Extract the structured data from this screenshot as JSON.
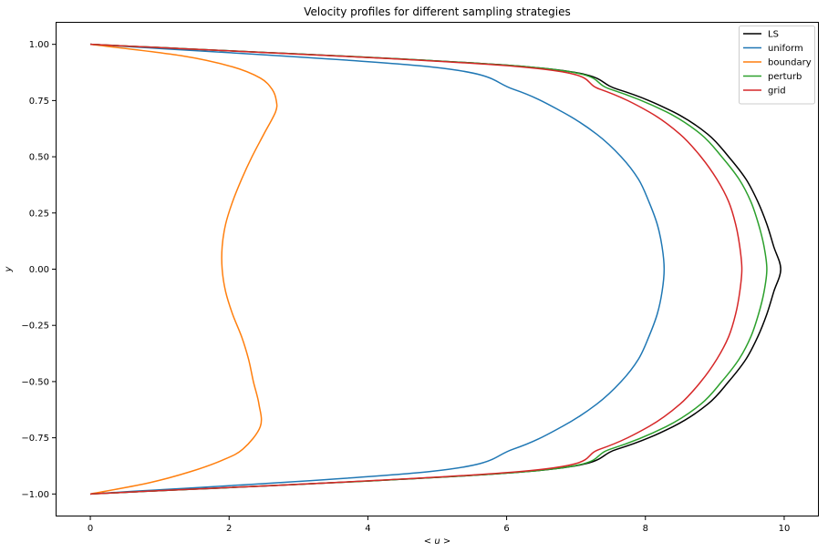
{
  "chart_data": {
    "type": "line",
    "title": "Velocity profiles for different sampling strategies",
    "xlabel": "< u >",
    "ylabel": "y",
    "xlim": [
      -0.5,
      10.5
    ],
    "ylim": [
      -1.1,
      1.1
    ],
    "xticks": [
      0,
      2,
      4,
      6,
      8,
      10
    ],
    "yticks": [
      -1.0,
      -0.75,
      -0.5,
      -0.25,
      0.0,
      0.25,
      0.5,
      0.75,
      1.0
    ],
    "xtick_labels": [
      "0",
      "2",
      "4",
      "6",
      "8",
      "10"
    ],
    "ytick_labels": [
      "−1.00",
      "−0.75",
      "−0.50",
      "−0.25",
      "0.00",
      "0.25",
      "0.50",
      "0.75",
      "1.00"
    ],
    "grid": false,
    "legend_position": "top-right",
    "series": [
      {
        "name": "LS",
        "color": "#000000",
        "y": [
          1.0,
          0.9,
          0.8,
          0.7,
          0.6,
          0.5,
          0.4,
          0.3,
          0.2,
          0.1,
          0.0,
          -0.1,
          -0.2,
          -0.3,
          -0.4,
          -0.5,
          -0.6,
          -0.7,
          -0.8,
          -0.9,
          -1.0
        ],
        "x": [
          0.0,
          6.3,
          7.6,
          8.4,
          8.9,
          9.2,
          9.45,
          9.62,
          9.75,
          9.85,
          9.95,
          9.85,
          9.75,
          9.62,
          9.45,
          9.2,
          8.9,
          8.4,
          7.6,
          6.3,
          0.0
        ]
      },
      {
        "name": "uniform",
        "color": "#1f77b4",
        "y": [
          1.0,
          0.9,
          0.8,
          0.7,
          0.6,
          0.5,
          0.4,
          0.3,
          0.2,
          0.1,
          0.0,
          -0.1,
          -0.2,
          -0.3,
          -0.4,
          -0.5,
          -0.6,
          -0.7,
          -0.8,
          -0.9,
          -1.0
        ],
        "x": [
          0.0,
          4.9,
          6.1,
          6.8,
          7.3,
          7.65,
          7.9,
          8.05,
          8.17,
          8.24,
          8.27,
          8.24,
          8.17,
          8.05,
          7.9,
          7.65,
          7.3,
          6.8,
          6.1,
          4.9,
          0.0
        ]
      },
      {
        "name": "boundary",
        "color": "#ff7f0e",
        "y": [
          1.0,
          0.95,
          0.9,
          0.85,
          0.8,
          0.75,
          0.7,
          0.6,
          0.5,
          0.4,
          0.3,
          0.2,
          0.1,
          0.0,
          -0.1,
          -0.2,
          -0.3,
          -0.4,
          -0.5,
          -0.6,
          -0.7,
          -0.8,
          -0.85,
          -0.9,
          -0.95,
          -1.0
        ],
        "x": [
          0.0,
          1.3,
          2.05,
          2.45,
          2.62,
          2.68,
          2.67,
          2.5,
          2.33,
          2.18,
          2.05,
          1.95,
          1.9,
          1.9,
          1.95,
          2.05,
          2.18,
          2.28,
          2.35,
          2.43,
          2.45,
          2.2,
          1.9,
          1.45,
          0.85,
          0.0
        ]
      },
      {
        "name": "perturb",
        "color": "#2ca02c",
        "y": [
          1.0,
          0.9,
          0.8,
          0.7,
          0.6,
          0.5,
          0.4,
          0.3,
          0.2,
          0.1,
          0.0,
          -0.1,
          -0.2,
          -0.3,
          -0.4,
          -0.5,
          -0.6,
          -0.7,
          -0.8,
          -0.9,
          -1.0
        ],
        "x": [
          0.0,
          6.3,
          7.5,
          8.3,
          8.8,
          9.1,
          9.35,
          9.52,
          9.63,
          9.71,
          9.75,
          9.71,
          9.63,
          9.52,
          9.35,
          9.1,
          8.8,
          8.3,
          7.5,
          6.3,
          0.0
        ]
      },
      {
        "name": "grid",
        "color": "#d62728",
        "y": [
          1.0,
          0.9,
          0.8,
          0.7,
          0.6,
          0.5,
          0.4,
          0.3,
          0.2,
          0.1,
          0.0,
          -0.1,
          -0.2,
          -0.3,
          -0.4,
          -0.5,
          -0.6,
          -0.7,
          -0.8,
          -0.9,
          -1.0
        ],
        "x": [
          0.0,
          6.2,
          7.35,
          8.05,
          8.5,
          8.8,
          9.03,
          9.2,
          9.3,
          9.36,
          9.39,
          9.36,
          9.3,
          9.2,
          9.03,
          8.8,
          8.5,
          8.05,
          7.35,
          6.2,
          0.0
        ]
      }
    ]
  }
}
